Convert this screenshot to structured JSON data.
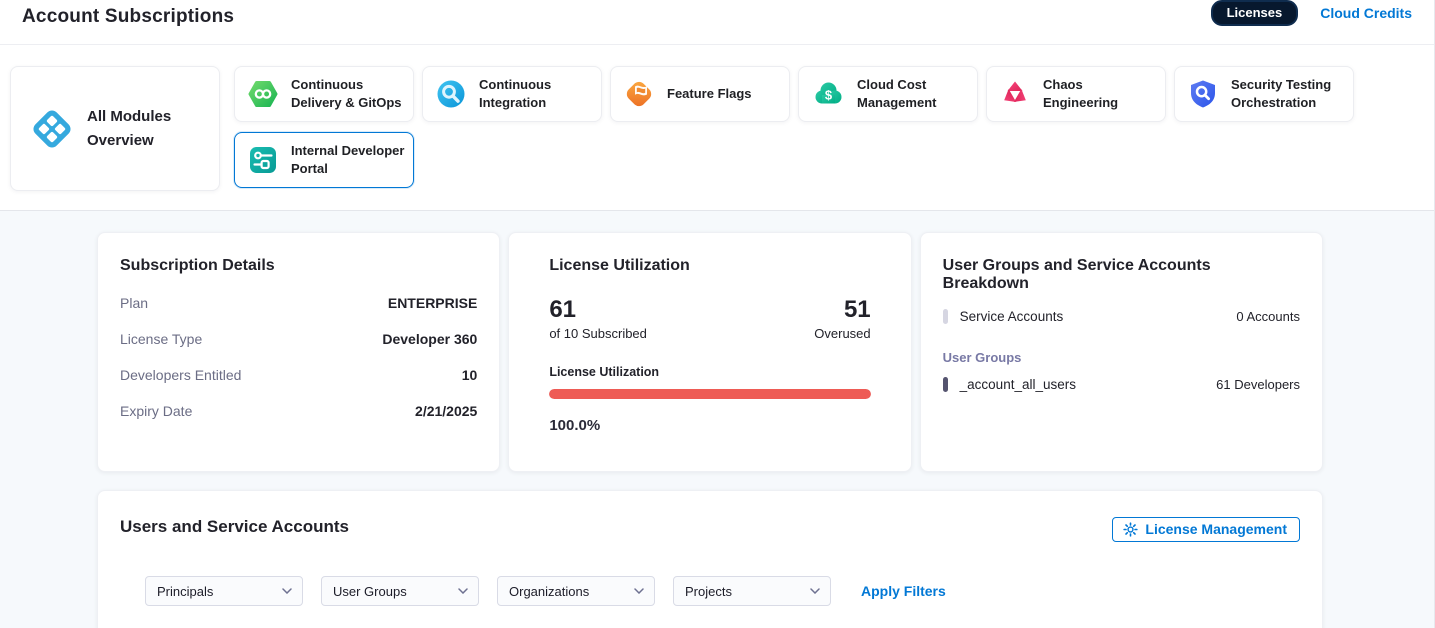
{
  "header": {
    "title": "Account Subscriptions",
    "tabs": [
      {
        "label": "Licenses",
        "active": true
      },
      {
        "label": "Cloud Credits",
        "active": false
      }
    ]
  },
  "overview_card": {
    "label": "All Modules Overview"
  },
  "modules": [
    {
      "label": "Continuous Delivery & GitOps",
      "icon": "cd-gitops-icon",
      "selected": false
    },
    {
      "label": "Continuous Integration",
      "icon": "continuous-integration-icon",
      "selected": false
    },
    {
      "label": "Feature Flags",
      "icon": "feature-flags-icon",
      "selected": false
    },
    {
      "label": "Cloud Cost Management",
      "icon": "cloud-cost-icon",
      "selected": false
    },
    {
      "label": "Chaos Engineering",
      "icon": "chaos-engineering-icon",
      "selected": false
    },
    {
      "label": "Security Testing Orchestration",
      "icon": "security-testing-icon",
      "selected": false
    },
    {
      "label": "Internal Developer Portal",
      "icon": "internal-developer-portal-icon",
      "selected": true
    }
  ],
  "subscription_details": {
    "title": "Subscription Details",
    "rows": [
      {
        "label": "Plan",
        "value": "ENTERPRISE"
      },
      {
        "label": "License Type",
        "value": "Developer 360"
      },
      {
        "label": "Developers Entitled",
        "value": "10"
      },
      {
        "label": "Expiry Date",
        "value": "2/21/2025"
      }
    ]
  },
  "license_utilization": {
    "title": "License Utilization",
    "used_count": "61",
    "used_caption": "of 10 Subscribed",
    "overused_count": "51",
    "overused_caption": "Overused",
    "bar_label": "License Utilization",
    "bar_percent": 100.0,
    "percent_label": "100.0%",
    "bar_color": "#ee5b55"
  },
  "breakdown": {
    "title": "User Groups and Service Accounts Breakdown",
    "service_accounts": {
      "label": "Service Accounts",
      "value": "0 Accounts"
    },
    "user_groups_heading": "User Groups",
    "user_groups": [
      {
        "name": "_account_all_users",
        "value": "61 Developers"
      }
    ]
  },
  "users_section": {
    "title": "Users and Service Accounts",
    "license_management_label": "License Management",
    "filters": [
      {
        "label": "Principals"
      },
      {
        "label": "User Groups"
      },
      {
        "label": "Organizations"
      },
      {
        "label": "Projects"
      }
    ],
    "apply_filters_label": "Apply Filters"
  },
  "colors": {
    "accent_blue": "#0278d5",
    "navy_pill": "#07182e",
    "utilization_red": "#ee5b55",
    "lower_background": "#f6f9fc"
  }
}
